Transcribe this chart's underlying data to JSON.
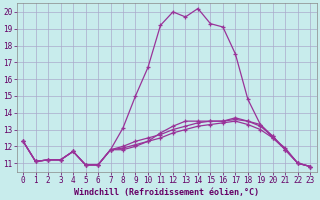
{
  "xlabel": "Windchill (Refroidissement éolien,°C)",
  "bg_color": "#c8ecec",
  "grid_color": "#aaaacc",
  "line_color": "#993399",
  "xlim": [
    -0.5,
    23.5
  ],
  "ylim": [
    10.5,
    20.5
  ],
  "xticks": [
    0,
    1,
    2,
    3,
    4,
    5,
    6,
    7,
    8,
    9,
    10,
    11,
    12,
    13,
    14,
    15,
    16,
    17,
    18,
    19,
    20,
    21,
    22,
    23
  ],
  "yticks": [
    11,
    12,
    13,
    14,
    15,
    16,
    17,
    18,
    19,
    20
  ],
  "lines": [
    [
      12.3,
      11.1,
      11.2,
      11.2,
      11.7,
      10.9,
      10.9,
      11.8,
      11.8,
      12.0,
      12.3,
      12.8,
      13.2,
      13.5,
      13.5,
      13.5,
      13.5,
      13.6,
      13.5,
      13.2,
      12.6,
      11.8,
      11.0,
      10.8
    ],
    [
      12.3,
      11.1,
      11.2,
      11.2,
      11.7,
      10.9,
      10.9,
      11.8,
      13.1,
      15.0,
      16.7,
      19.2,
      20.0,
      19.7,
      20.2,
      19.3,
      19.1,
      17.5,
      14.8,
      13.3,
      12.5,
      11.9,
      11.0,
      10.8
    ],
    [
      12.3,
      11.1,
      11.2,
      11.2,
      11.7,
      10.9,
      10.9,
      11.8,
      12.0,
      12.3,
      12.5,
      12.7,
      13.0,
      13.2,
      13.4,
      13.5,
      13.5,
      13.7,
      13.5,
      13.3,
      12.6,
      11.8,
      11.0,
      10.8
    ],
    [
      12.3,
      11.1,
      11.2,
      11.2,
      11.7,
      10.9,
      10.9,
      11.8,
      11.9,
      12.1,
      12.3,
      12.5,
      12.8,
      13.0,
      13.2,
      13.3,
      13.4,
      13.5,
      13.3,
      13.0,
      12.5,
      11.8,
      11.0,
      10.8
    ]
  ],
  "tick_fontsize": 5.5,
  "xlabel_fontsize": 6.0,
  "marker_size": 3.5,
  "line_width": 0.9
}
